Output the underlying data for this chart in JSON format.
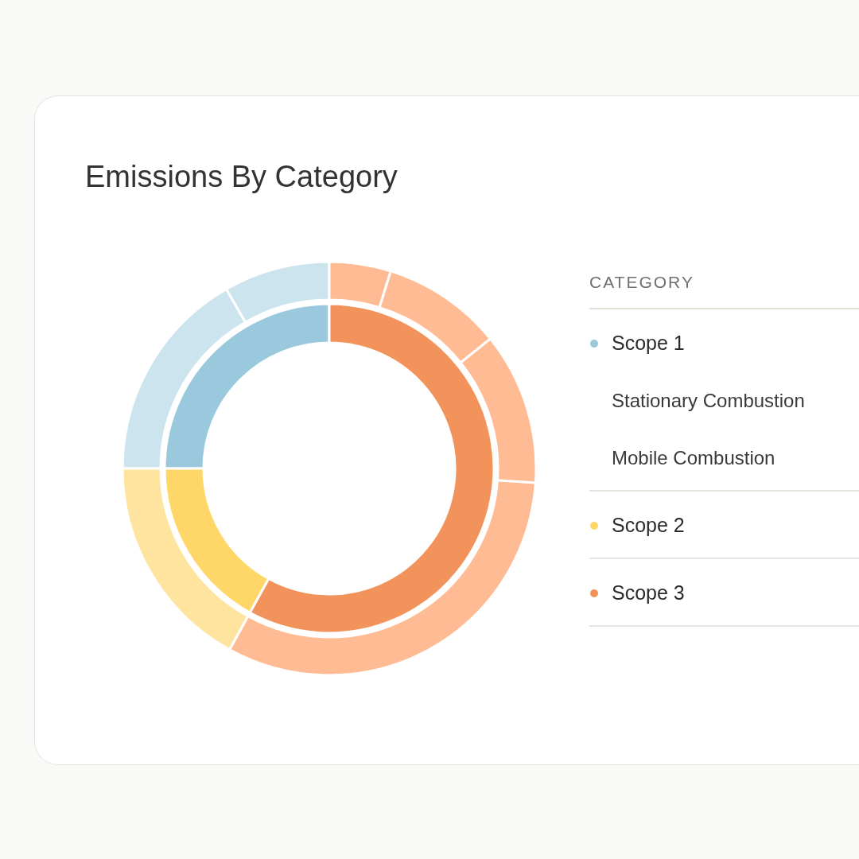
{
  "chart_data": [
    {
      "type": "donut",
      "title": "Emissions By Category",
      "legend_title": "CATEGORY",
      "legend": "right",
      "categories": [
        "Scope 1",
        "Scope 2",
        "Scope 3"
      ],
      "values": [
        25,
        17,
        58
      ],
      "colors": [
        "#9ac9de",
        "#ffd668",
        "#f2935c"
      ]
    },
    {
      "type": "donut",
      "annotations": [
        "Stationary Combustion",
        "Mobile Combustion"
      ],
      "categories": [
        null,
        null,
        null,
        null,
        null,
        null,
        null
      ],
      "values": [
        8.3,
        16.7,
        17,
        31.9,
        11.9,
        9.4,
        4.8
      ],
      "colors": [
        "#cce4ee",
        "#cce4ee",
        "#ffe49f",
        "#ffbb94",
        "#ffbb94",
        "#ffbb94",
        "#ffbb94"
      ]
    }
  ]
}
